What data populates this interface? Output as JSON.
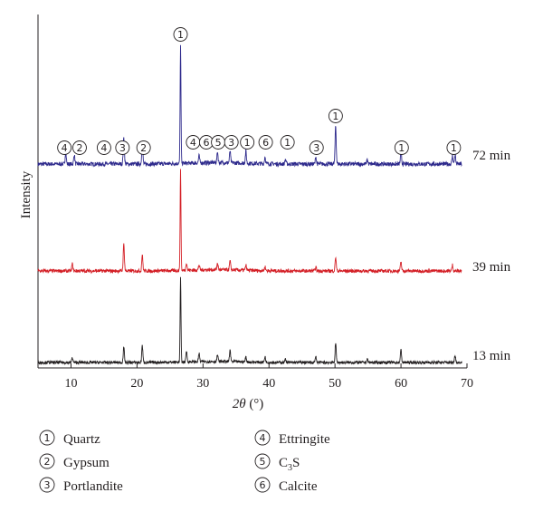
{
  "chart_data": {
    "type": "line",
    "xlabel_symbol": "2θ",
    "xlabel_unit": "(°)",
    "ylabel": "Intensity",
    "xlim": [
      5,
      70
    ],
    "x_ticks": [
      10,
      20,
      30,
      40,
      50,
      60,
      70
    ],
    "series": [
      {
        "name": "72 min",
        "color": "#2e2a8c",
        "peaks": [
          {
            "x": 9.2,
            "h": 0.1
          },
          {
            "x": 10.5,
            "h": 0.08
          },
          {
            "x": 18.0,
            "h": 0.22
          },
          {
            "x": 20.8,
            "h": 0.18
          },
          {
            "x": 26.6,
            "h": 1.0
          },
          {
            "x": 29.4,
            "h": 0.06
          },
          {
            "x": 32.2,
            "h": 0.09
          },
          {
            "x": 34.1,
            "h": 0.1
          },
          {
            "x": 36.5,
            "h": 0.1
          },
          {
            "x": 39.4,
            "h": 0.06
          },
          {
            "x": 42.5,
            "h": 0.04
          },
          {
            "x": 47.1,
            "h": 0.06
          },
          {
            "x": 50.1,
            "h": 0.33
          },
          {
            "x": 54.9,
            "h": 0.04
          },
          {
            "x": 60.0,
            "h": 0.1
          },
          {
            "x": 67.8,
            "h": 0.07
          },
          {
            "x": 68.2,
            "h": 0.08
          }
        ]
      },
      {
        "name": "39 min",
        "color": "#d42027",
        "peaks": [
          {
            "x": 10.2,
            "h": 0.07
          },
          {
            "x": 18.0,
            "h": 0.27
          },
          {
            "x": 20.8,
            "h": 0.16
          },
          {
            "x": 26.6,
            "h": 1.0
          },
          {
            "x": 27.5,
            "h": 0.08
          },
          {
            "x": 29.4,
            "h": 0.05
          },
          {
            "x": 32.2,
            "h": 0.07
          },
          {
            "x": 34.1,
            "h": 0.09
          },
          {
            "x": 36.5,
            "h": 0.05
          },
          {
            "x": 39.4,
            "h": 0.04
          },
          {
            "x": 47.1,
            "h": 0.04
          },
          {
            "x": 50.1,
            "h": 0.14
          },
          {
            "x": 60.0,
            "h": 0.09
          },
          {
            "x": 67.8,
            "h": 0.06
          }
        ]
      },
      {
        "name": "13 min",
        "color": "#231f20",
        "peaks": [
          {
            "x": 10.2,
            "h": 0.06
          },
          {
            "x": 18.0,
            "h": 0.18
          },
          {
            "x": 20.8,
            "h": 0.2
          },
          {
            "x": 26.6,
            "h": 1.0
          },
          {
            "x": 27.5,
            "h": 0.13
          },
          {
            "x": 29.4,
            "h": 0.1
          },
          {
            "x": 32.2,
            "h": 0.08
          },
          {
            "x": 34.1,
            "h": 0.14
          },
          {
            "x": 36.5,
            "h": 0.06
          },
          {
            "x": 39.4,
            "h": 0.07
          },
          {
            "x": 42.5,
            "h": 0.04
          },
          {
            "x": 47.1,
            "h": 0.07
          },
          {
            "x": 50.1,
            "h": 0.23
          },
          {
            "x": 54.9,
            "h": 0.04
          },
          {
            "x": 60.0,
            "h": 0.15
          },
          {
            "x": 68.2,
            "h": 0.09
          }
        ]
      }
    ],
    "annotations": [
      {
        "x": 26.6,
        "label": "1"
      },
      {
        "x": 50.1,
        "label": "1"
      },
      {
        "x": 9.0,
        "label": "4"
      },
      {
        "x": 11.3,
        "label": "2"
      },
      {
        "x": 15.0,
        "label": "4"
      },
      {
        "x": 17.8,
        "label": "3"
      },
      {
        "x": 21.0,
        "label": "2"
      },
      {
        "x": 28.5,
        "label": "4"
      },
      {
        "x": 30.5,
        "label": "6"
      },
      {
        "x": 32.3,
        "label": "5"
      },
      {
        "x": 34.3,
        "label": "3"
      },
      {
        "x": 36.7,
        "label": "1"
      },
      {
        "x": 39.5,
        "label": "6"
      },
      {
        "x": 42.8,
        "label": "1"
      },
      {
        "x": 47.2,
        "label": "3"
      },
      {
        "x": 60.1,
        "label": "1"
      },
      {
        "x": 68.0,
        "label": "1"
      }
    ],
    "legend": [
      {
        "num": "1",
        "name": "Quartz"
      },
      {
        "num": "2",
        "name": "Gypsum"
      },
      {
        "num": "3",
        "name": "Portlandite"
      },
      {
        "num": "4",
        "name": "Ettringite"
      },
      {
        "num": "5",
        "name_main": "C",
        "name_sub": "3",
        "name_end": "S"
      },
      {
        "num": "6",
        "name": "Calcite"
      }
    ]
  }
}
